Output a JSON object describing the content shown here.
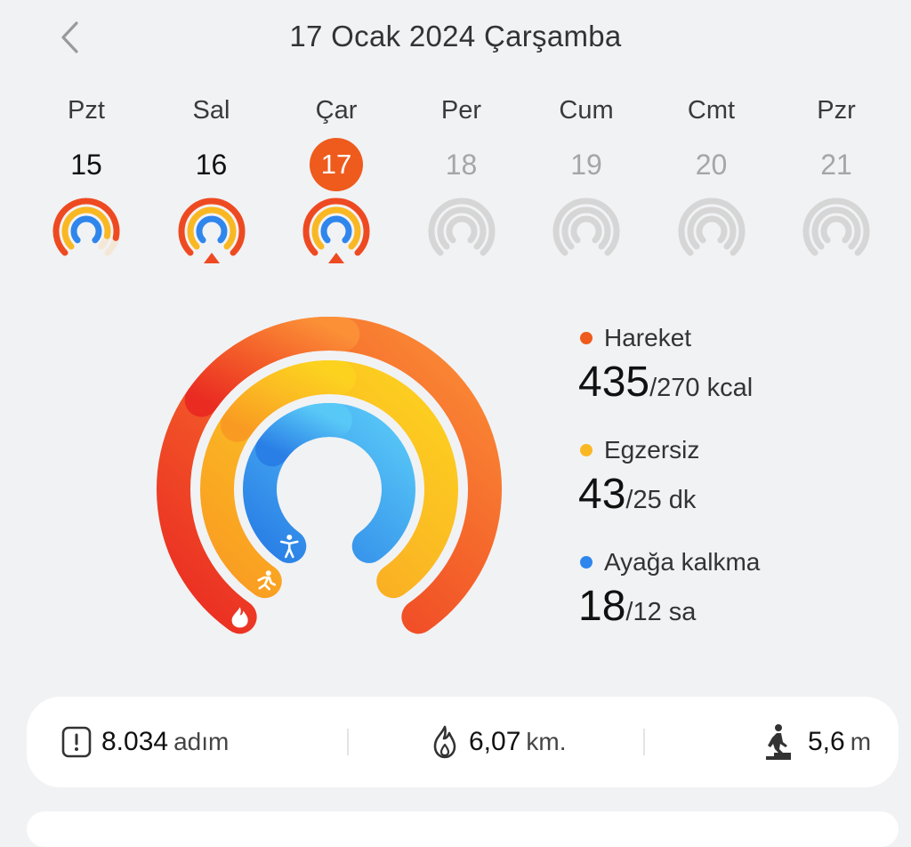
{
  "header": {
    "title": "17 Ocak 2024 Çarşamba"
  },
  "week": [
    {
      "name": "Pzt",
      "num": "15",
      "state": "past",
      "rings": [
        0.88,
        0.88,
        1.0
      ]
    },
    {
      "name": "Sal",
      "num": "16",
      "state": "past",
      "rings": [
        1.0,
        1.0,
        1.0
      ]
    },
    {
      "name": "Çar",
      "num": "17",
      "state": "selected",
      "rings": [
        1.0,
        1.0,
        1.0
      ]
    },
    {
      "name": "Per",
      "num": "18",
      "state": "future",
      "rings": [
        0,
        0,
        0
      ]
    },
    {
      "name": "Cum",
      "num": "19",
      "state": "future",
      "rings": [
        0,
        0,
        0
      ]
    },
    {
      "name": "Cmt",
      "num": "20",
      "state": "future",
      "rings": [
        0,
        0,
        0
      ]
    },
    {
      "name": "Pzr",
      "num": "21",
      "state": "future",
      "rings": [
        0,
        0,
        0
      ]
    }
  ],
  "activity": {
    "move": {
      "label": "Hareket",
      "value": "435",
      "goal": "/270 kcal",
      "color": "#ee5b1d",
      "progress": 1.61
    },
    "exercise": {
      "label": "Egzersiz",
      "value": "43",
      "goal": "/25 dk",
      "color": "#f9b823",
      "progress": 1.72
    },
    "stand": {
      "label": "Ayağa kalkma",
      "value": "18",
      "goal": "/12 sa",
      "color": "#2f86ec",
      "progress": 1.5
    }
  },
  "stats": {
    "steps": {
      "value": "8.034",
      "unit": "adım",
      "icon": "steps-icon"
    },
    "distance": {
      "value": "6,07",
      "unit": "km.",
      "icon": "flame-icon"
    },
    "climb": {
      "value": "5,6",
      "unit": "m",
      "icon": "stairs-icon"
    }
  }
}
